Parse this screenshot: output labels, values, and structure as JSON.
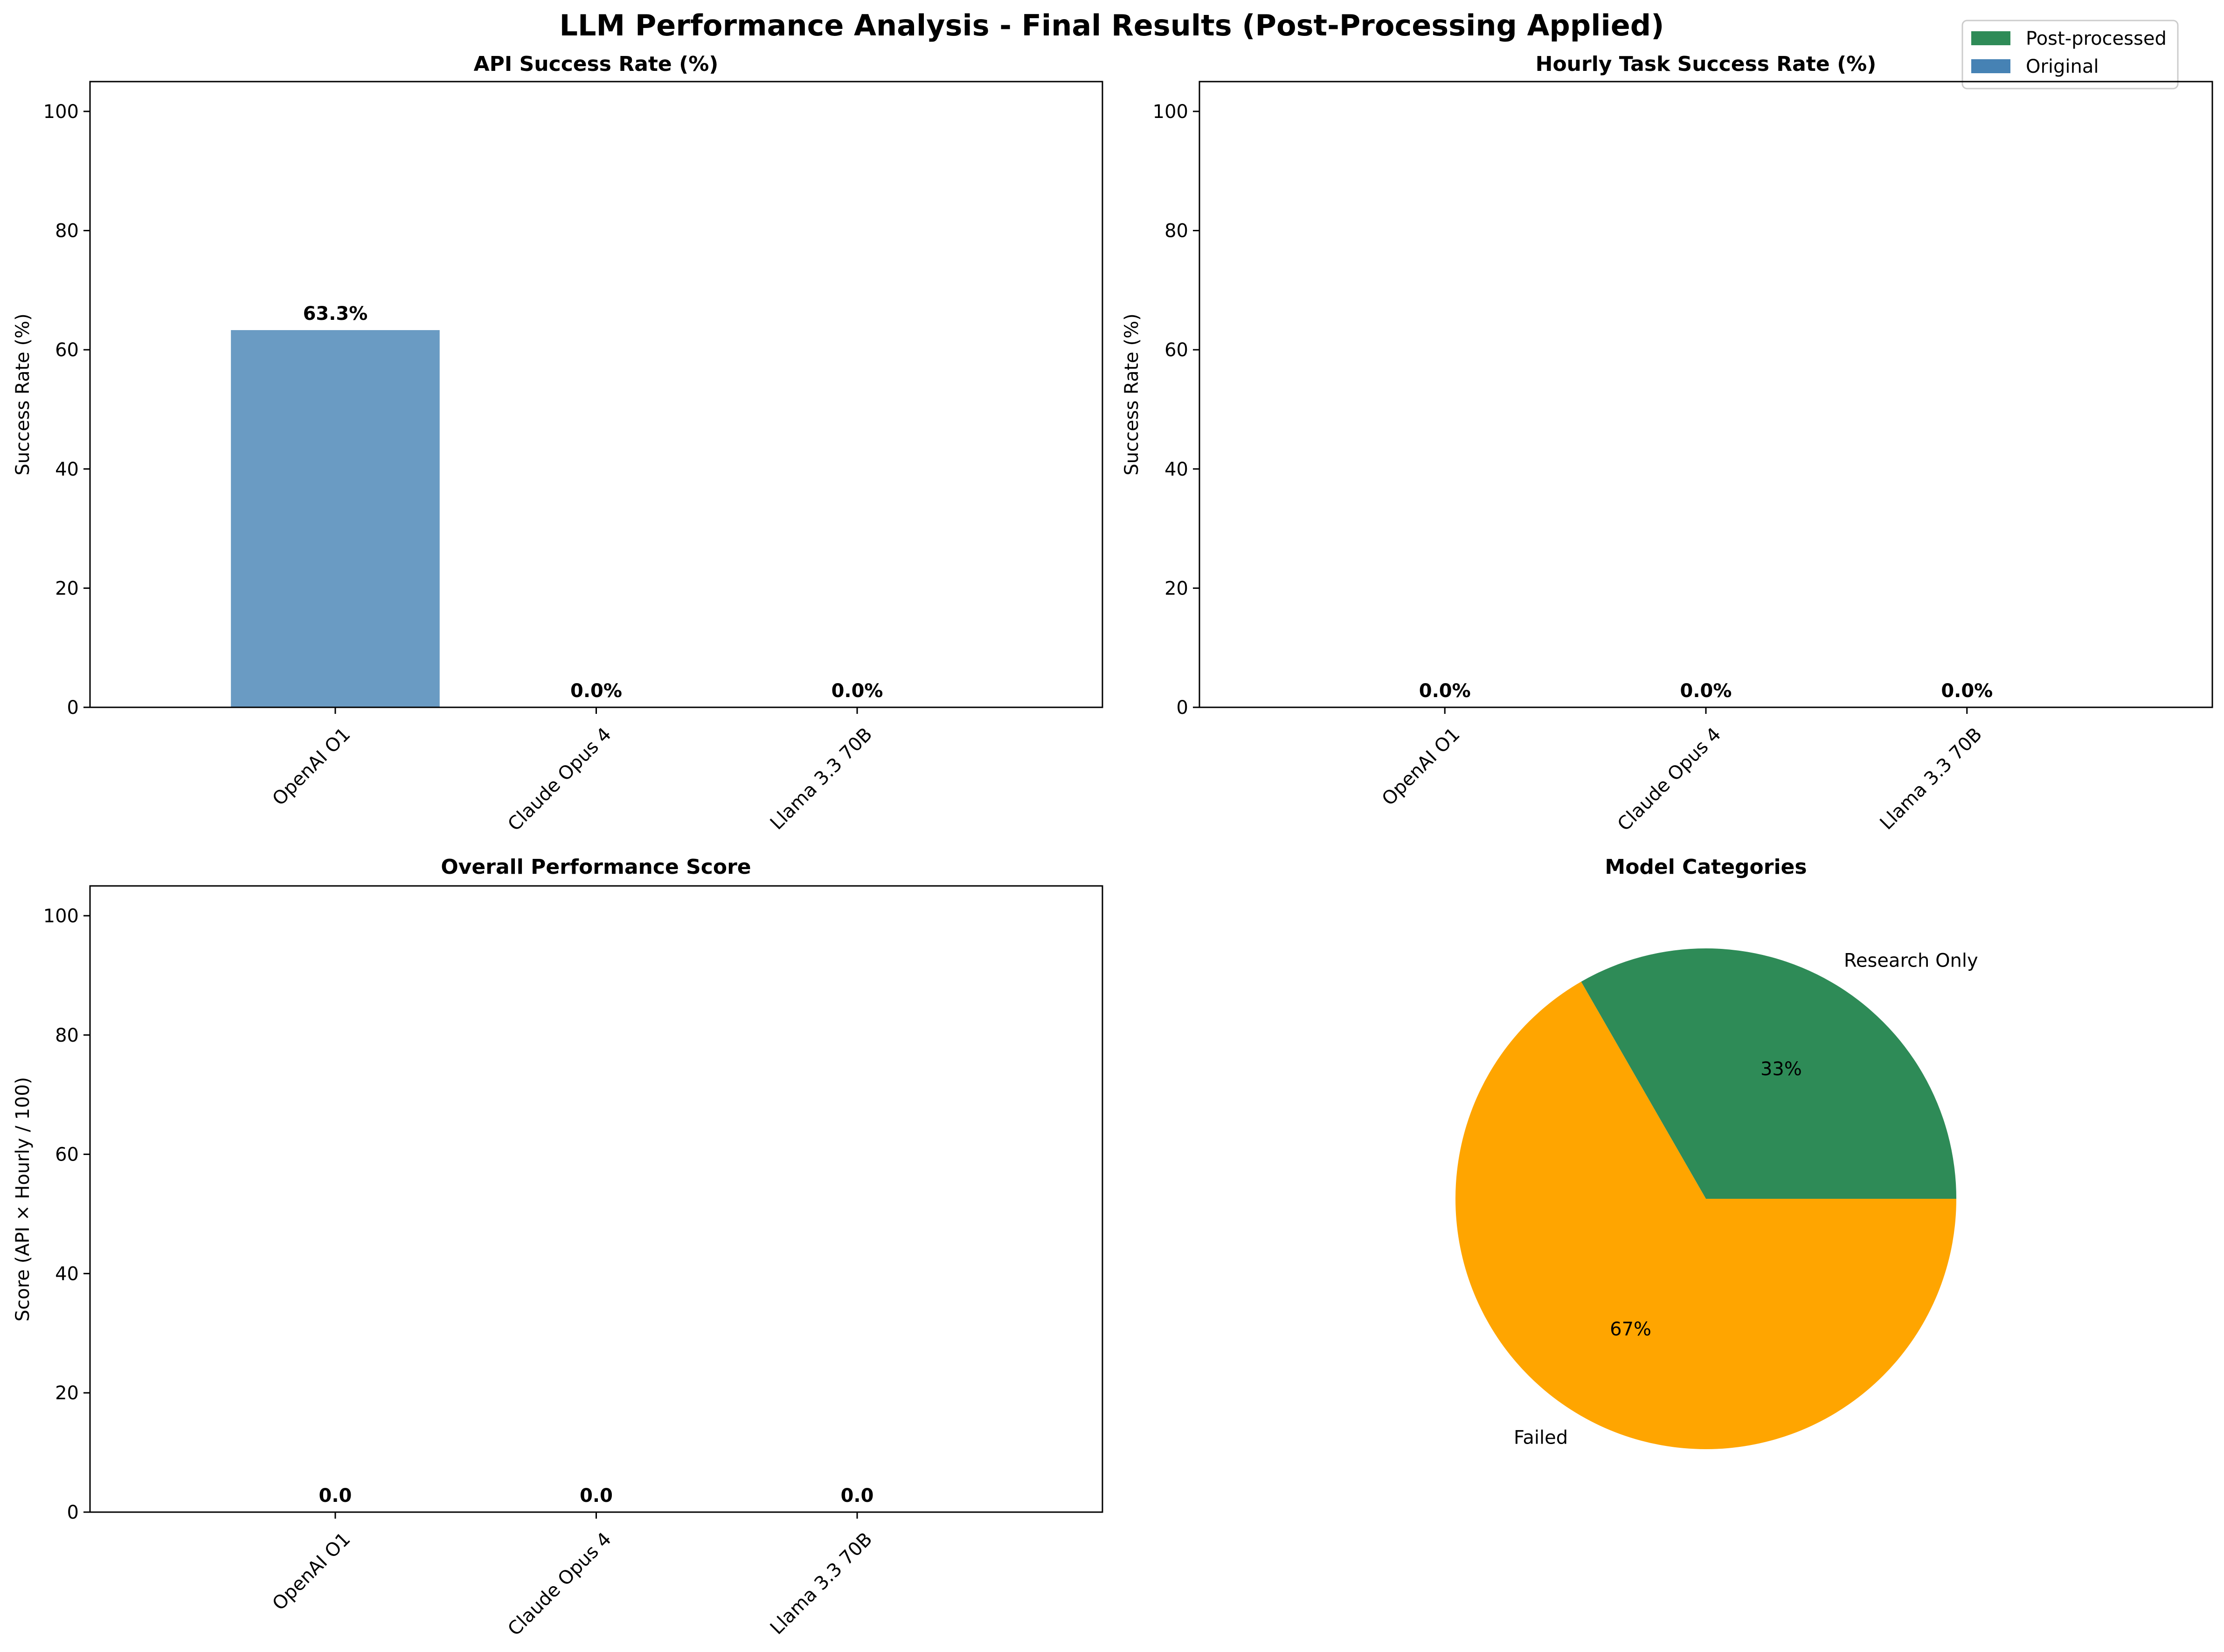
{
  "figure": {
    "suptitle": "LLM Performance Analysis - Final Results (Post-Processing Applied)"
  },
  "legend": {
    "placement": "top-right",
    "items": [
      {
        "label": "Post-processed",
        "color": "#2e8b57"
      },
      {
        "label": "Original",
        "color": "#4682b4"
      }
    ]
  },
  "chart_data": [
    {
      "type": "bar",
      "title": "API Success Rate (%)",
      "xlabel": "",
      "ylabel": "Success Rate (%)",
      "categories": [
        "OpenAI O1",
        "Claude Opus 4",
        "Llama 3.3 70B"
      ],
      "values": [
        63.3,
        0.0,
        0.0
      ],
      "value_labels": [
        "63.3%",
        "0.0%",
        "0.0%"
      ],
      "ylim": [
        0,
        105
      ],
      "yticks": [
        0,
        20,
        40,
        60,
        80,
        100
      ],
      "bar_color": "#6a9bc3",
      "grid": false
    },
    {
      "type": "bar",
      "title": "Hourly Task Success Rate (%)",
      "xlabel": "",
      "ylabel": "Success Rate (%)",
      "categories": [
        "OpenAI O1",
        "Claude Opus 4",
        "Llama 3.3 70B"
      ],
      "values": [
        0.0,
        0.0,
        0.0
      ],
      "value_labels": [
        "0.0%",
        "0.0%",
        "0.0%"
      ],
      "ylim": [
        0,
        105
      ],
      "yticks": [
        0,
        20,
        40,
        60,
        80,
        100
      ],
      "grid": false
    },
    {
      "type": "bar",
      "title": "Overall Performance Score",
      "xlabel": "",
      "ylabel": "Score (API × Hourly / 100)",
      "categories": [
        "OpenAI O1",
        "Claude Opus 4",
        "Llama 3.3 70B"
      ],
      "values": [
        0.0,
        0.0,
        0.0
      ],
      "value_labels": [
        "0.0",
        "0.0",
        "0.0"
      ],
      "ylim": [
        0,
        105
      ],
      "yticks": [
        0,
        20,
        40,
        60,
        80,
        100
      ],
      "grid": false
    },
    {
      "type": "pie",
      "title": "Model Categories",
      "slices": [
        {
          "label": "Research Only",
          "value": 33.3,
          "pct_label": "33%",
          "color": "#2e8b57"
        },
        {
          "label": "Failed",
          "value": 66.7,
          "pct_label": "67%",
          "color": "#ffa500"
        }
      ]
    }
  ]
}
